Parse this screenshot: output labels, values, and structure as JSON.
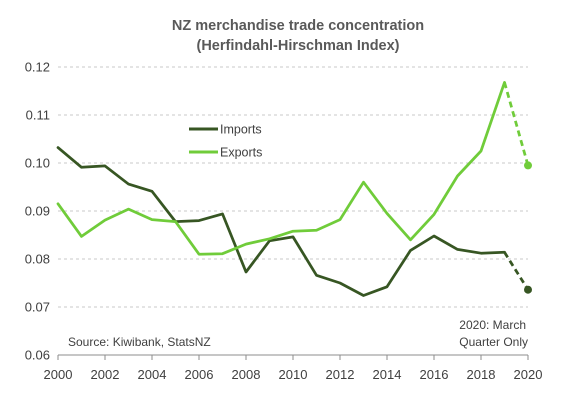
{
  "chart_data": {
    "type": "line",
    "title": "NZ merchandise trade concentration",
    "subtitle": "(Herfindahl-Hirschman Index)",
    "xlabel": "",
    "ylabel": "",
    "xlim": [
      2000,
      2020
    ],
    "ylim": [
      0.06,
      0.12
    ],
    "x_ticks": [
      "2000",
      "2002",
      "2004",
      "2006",
      "2008",
      "2010",
      "2012",
      "2014",
      "2016",
      "2018",
      "2020"
    ],
    "y_ticks": [
      "0.06",
      "0.07",
      "0.08",
      "0.09",
      "0.10",
      "0.11",
      "0.12"
    ],
    "grid": "horizontal-dashed",
    "legend_position": "upper-left-inside",
    "x": [
      2000,
      2001,
      2002,
      2003,
      2004,
      2005,
      2006,
      2007,
      2008,
      2009,
      2010,
      2011,
      2012,
      2013,
      2014,
      2015,
      2016,
      2017,
      2018,
      2019
    ],
    "series": [
      {
        "name": "Imports",
        "color": "#375623",
        "values": [
          0.1032,
          0.0991,
          0.0994,
          0.0956,
          0.0941,
          0.0878,
          0.088,
          0.0894,
          0.0773,
          0.0838,
          0.0846,
          0.0766,
          0.075,
          0.0724,
          0.0742,
          0.0818,
          0.0848,
          0.082,
          0.0812,
          0.0814
        ],
        "projection": {
          "x": [
            2019,
            2020
          ],
          "values": [
            0.0814,
            0.0736
          ]
        }
      },
      {
        "name": "Exports",
        "color": "#70cc3a",
        "values": [
          0.0915,
          0.0847,
          0.0881,
          0.0904,
          0.0882,
          0.0878,
          0.081,
          0.0811,
          0.0831,
          0.0842,
          0.0858,
          0.086,
          0.0882,
          0.096,
          0.0895,
          0.084,
          0.0893,
          0.0973,
          0.1025,
          0.1168
        ],
        "projection": {
          "x": [
            2019,
            2020
          ],
          "values": [
            0.1168,
            0.0995
          ]
        }
      }
    ],
    "annotations": {
      "source": "Source: Kiwibank, StatsNZ",
      "note_line1": "2020:  March",
      "note_line2": "Quarter Only"
    }
  }
}
